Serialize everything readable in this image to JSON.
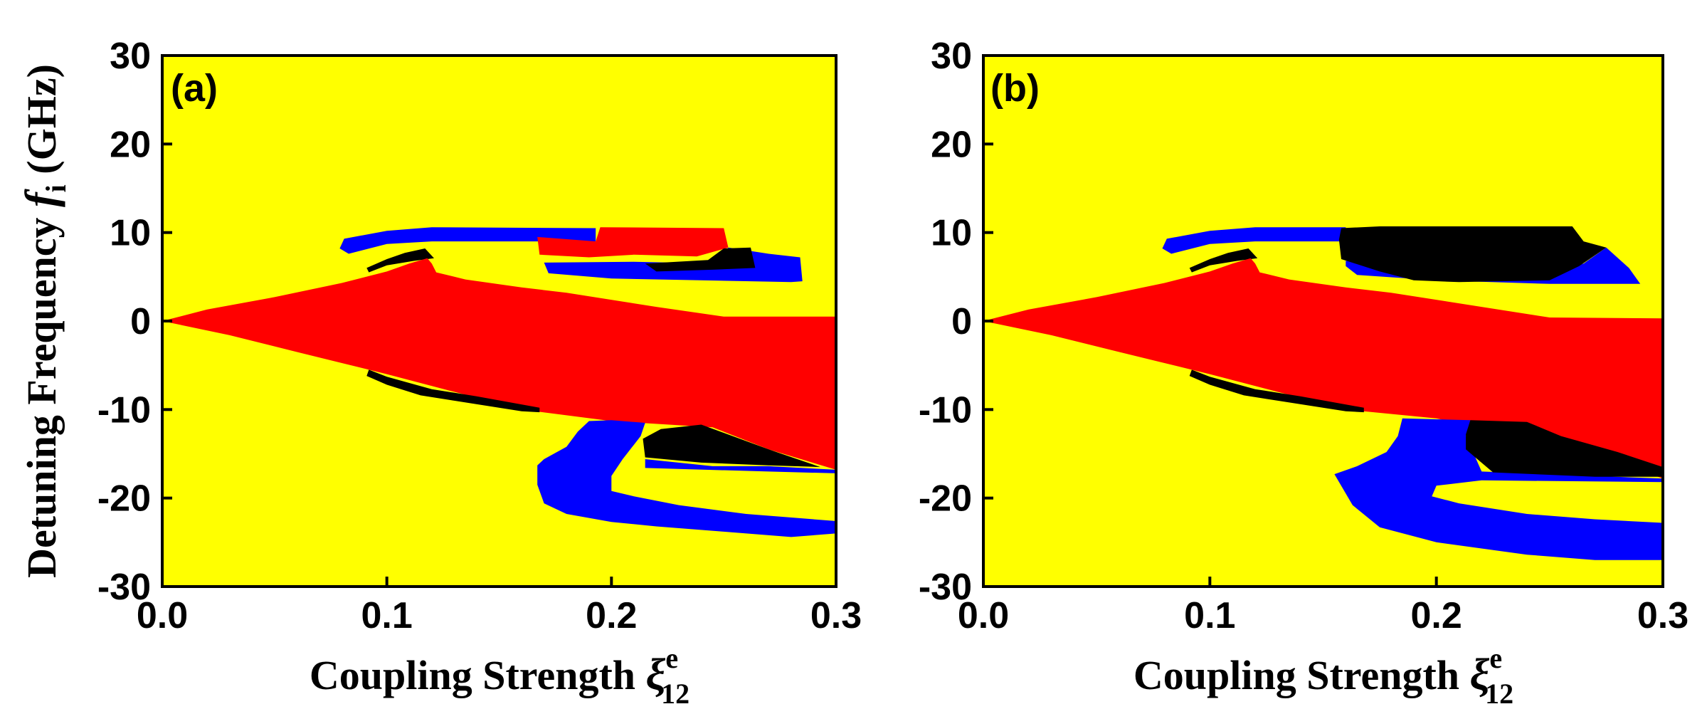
{
  "chart_data": [
    {
      "type": "heatmap",
      "panel_label": "(a)",
      "xlabel": "Coupling Strength",
      "xlabel_symbol": "ξ",
      "xlabel_superscript": "e",
      "xlabel_subscript": "12",
      "ylabel": "Detuning Frequency",
      "ylabel_symbol": "f",
      "ylabel_subscript": "i",
      "ylabel_unit": "(GHz)",
      "xlim": [
        0.0,
        0.3
      ],
      "ylim": [
        -30,
        30
      ],
      "xticks": [
        "0.0",
        "0.1",
        "0.2",
        "0.3"
      ],
      "yticks": [
        "-30",
        "-20",
        "-10",
        "0",
        "10",
        "20",
        "30"
      ],
      "background_color": "#ffff00",
      "regions": [
        {
          "name": "blue-upper-arc",
          "color": "#0000ff",
          "points": [
            [
              0.079,
              8.2
            ],
            [
              0.081,
              9.3
            ],
            [
              0.1,
              10.2
            ],
            [
              0.12,
              10.6
            ],
            [
              0.193,
              10.5
            ],
            [
              0.193,
              9.0
            ],
            [
              0.12,
              9.0
            ],
            [
              0.1,
              8.7
            ],
            [
              0.083,
              7.6
            ]
          ]
        },
        {
          "name": "blue-upper-right",
          "color": "#0000ff",
          "points": [
            [
              0.17,
              6.6
            ],
            [
              0.21,
              6.7
            ],
            [
              0.248,
              6.5
            ],
            [
              0.252,
              8.3
            ],
            [
              0.27,
              7.6
            ],
            [
              0.284,
              7.2
            ],
            [
              0.285,
              4.5
            ],
            [
              0.28,
              4.4
            ],
            [
              0.24,
              4.6
            ],
            [
              0.2,
              4.8
            ],
            [
              0.172,
              5.4
            ]
          ]
        },
        {
          "name": "red-upper-block",
          "color": "#ff0000",
          "points": [
            [
              0.167,
              9.5
            ],
            [
              0.193,
              9.0
            ],
            [
              0.195,
              10.6
            ],
            [
              0.25,
              10.5
            ],
            [
              0.252,
              8.3
            ],
            [
              0.238,
              7.3
            ],
            [
              0.21,
              7.5
            ],
            [
              0.19,
              7.2
            ],
            [
              0.168,
              7.5
            ]
          ]
        },
        {
          "name": "black-upper-sliver",
          "color": "#000000",
          "points": [
            [
              0.091,
              6.0
            ],
            [
              0.1,
              7.0
            ],
            [
              0.108,
              7.7
            ],
            [
              0.117,
              8.2
            ],
            [
              0.121,
              7.1
            ],
            [
              0.112,
              6.8
            ],
            [
              0.1,
              6.3
            ],
            [
              0.092,
              5.5
            ]
          ]
        },
        {
          "name": "black-upper-right",
          "color": "#000000",
          "points": [
            [
              0.215,
              6.5
            ],
            [
              0.243,
              6.9
            ],
            [
              0.25,
              8.2
            ],
            [
              0.262,
              8.3
            ],
            [
              0.264,
              6.0
            ],
            [
              0.245,
              5.8
            ],
            [
              0.22,
              5.6
            ]
          ]
        },
        {
          "name": "red-main-wedge",
          "color": "#ff0000",
          "points": [
            [
              0.0,
              0.0
            ],
            [
              0.02,
              1.3
            ],
            [
              0.05,
              2.7
            ],
            [
              0.08,
              4.3
            ],
            [
              0.1,
              5.6
            ],
            [
              0.11,
              6.5
            ],
            [
              0.118,
              7.1
            ],
            [
              0.12,
              6.5
            ],
            [
              0.122,
              5.5
            ],
            [
              0.135,
              4.7
            ],
            [
              0.16,
              3.8
            ],
            [
              0.18,
              3.2
            ],
            [
              0.22,
              1.6
            ],
            [
              0.25,
              0.5
            ],
            [
              0.3,
              0.5
            ],
            [
              0.3,
              -16.8
            ],
            [
              0.27,
              -14.5
            ],
            [
              0.245,
              -12.0
            ],
            [
              0.2,
              -11.3
            ],
            [
              0.16,
              -10.0
            ],
            [
              0.1,
              -6.0
            ],
            [
              0.06,
              -3.5
            ],
            [
              0.03,
              -1.6
            ],
            [
              0.0,
              0.0
            ]
          ]
        },
        {
          "name": "black-lower-sliver",
          "color": "#000000",
          "points": [
            [
              0.091,
              -6.2
            ],
            [
              0.1,
              -7.2
            ],
            [
              0.115,
              -8.4
            ],
            [
              0.13,
              -9.0
            ],
            [
              0.16,
              -10.2
            ],
            [
              0.168,
              -10.3
            ],
            [
              0.168,
              -9.8
            ],
            [
              0.14,
              -8.5
            ],
            [
              0.12,
              -7.7
            ],
            [
              0.1,
              -6.3
            ],
            [
              0.092,
              -5.5
            ]
          ]
        },
        {
          "name": "blue-lower-arc",
          "color": "#0000ff",
          "points": [
            [
              0.19,
              -11.3
            ],
            [
              0.2,
              -11.2
            ],
            [
              0.215,
              -11.5
            ],
            [
              0.213,
              -13.0
            ],
            [
              0.205,
              -15.6
            ],
            [
              0.2,
              -17.5
            ],
            [
              0.2,
              -18.6
            ],
            [
              0.2,
              -19.2
            ],
            [
              0.21,
              -19.8
            ],
            [
              0.23,
              -20.8
            ],
            [
              0.26,
              -21.8
            ],
            [
              0.3,
              -22.6
            ],
            [
              0.3,
              -24.0
            ],
            [
              0.28,
              -24.4
            ],
            [
              0.25,
              -23.8
            ],
            [
              0.22,
              -23.2
            ],
            [
              0.2,
              -22.7
            ],
            [
              0.18,
              -21.8
            ],
            [
              0.17,
              -20.6
            ],
            [
              0.167,
              -18.5
            ],
            [
              0.167,
              -16.3
            ],
            [
              0.17,
              -15.6
            ],
            [
              0.18,
              -14.2
            ],
            [
              0.185,
              -12.5
            ]
          ]
        },
        {
          "name": "blue-lower-right",
          "color": "#0000ff",
          "points": [
            [
              0.215,
              -15.6
            ],
            [
              0.245,
              -16.4
            ],
            [
              0.27,
              -16.4
            ],
            [
              0.3,
              -16.8
            ],
            [
              0.3,
              -17.2
            ],
            [
              0.27,
              -17.0
            ],
            [
              0.215,
              -16.6
            ]
          ]
        },
        {
          "name": "black-lower-right",
          "color": "#000000",
          "points": [
            [
              0.222,
              -12.2
            ],
            [
              0.24,
              -11.7
            ],
            [
              0.27,
              -14.5
            ],
            [
              0.293,
              -16.5
            ],
            [
              0.27,
              -16.3
            ],
            [
              0.24,
              -16.0
            ],
            [
              0.215,
              -15.4
            ],
            [
              0.214,
              -13.3
            ]
          ]
        }
      ]
    },
    {
      "type": "heatmap",
      "panel_label": "(b)",
      "xlabel": "Coupling Strength",
      "xlabel_symbol": "ξ",
      "xlabel_superscript": "e",
      "xlabel_subscript": "12",
      "xlim": [
        0.0,
        0.3
      ],
      "ylim": [
        -30,
        30
      ],
      "xticks": [
        "0.0",
        "0.1",
        "0.2",
        "0.3"
      ],
      "yticks": [
        "-30",
        "-20",
        "-10",
        "0",
        "10",
        "20",
        "30"
      ],
      "background_color": "#ffff00",
      "regions": [
        {
          "name": "blue-upper-arc",
          "color": "#0000ff",
          "points": [
            [
              0.079,
              8.2
            ],
            [
              0.081,
              9.3
            ],
            [
              0.1,
              10.2
            ],
            [
              0.12,
              10.6
            ],
            [
              0.16,
              10.6
            ],
            [
              0.16,
              9.0
            ],
            [
              0.12,
              9.0
            ],
            [
              0.1,
              8.7
            ],
            [
              0.083,
              7.6
            ]
          ]
        },
        {
          "name": "blue-upper-right",
          "color": "#0000ff",
          "points": [
            [
              0.16,
              6.8
            ],
            [
              0.2,
              6.0
            ],
            [
              0.25,
              5.5
            ],
            [
              0.265,
              6.5
            ],
            [
              0.275,
              8.3
            ],
            [
              0.285,
              6.0
            ],
            [
              0.29,
              4.2
            ],
            [
              0.25,
              4.2
            ],
            [
              0.2,
              4.6
            ],
            [
              0.165,
              5.2
            ],
            [
              0.16,
              6.2
            ]
          ]
        },
        {
          "name": "black-upper-block",
          "color": "#000000",
          "points": [
            [
              0.157,
              9.2
            ],
            [
              0.158,
              10.5
            ],
            [
              0.175,
              10.7
            ],
            [
              0.26,
              10.7
            ],
            [
              0.265,
              9.0
            ],
            [
              0.275,
              8.3
            ],
            [
              0.263,
              6.2
            ],
            [
              0.25,
              4.6
            ],
            [
              0.21,
              4.4
            ],
            [
              0.19,
              4.6
            ],
            [
              0.175,
              5.6
            ],
            [
              0.158,
              7.0
            ]
          ]
        },
        {
          "name": "black-upper-sliver",
          "color": "#000000",
          "points": [
            [
              0.091,
              6.0
            ],
            [
              0.1,
              7.0
            ],
            [
              0.108,
              7.7
            ],
            [
              0.117,
              8.2
            ],
            [
              0.121,
              7.1
            ],
            [
              0.112,
              6.8
            ],
            [
              0.1,
              6.3
            ],
            [
              0.092,
              5.5
            ]
          ]
        },
        {
          "name": "red-main-wedge",
          "color": "#ff0000",
          "points": [
            [
              0.0,
              0.0
            ],
            [
              0.02,
              1.3
            ],
            [
              0.05,
              2.7
            ],
            [
              0.08,
              4.3
            ],
            [
              0.1,
              5.6
            ],
            [
              0.11,
              6.5
            ],
            [
              0.118,
              7.1
            ],
            [
              0.12,
              6.5
            ],
            [
              0.122,
              5.5
            ],
            [
              0.135,
              4.7
            ],
            [
              0.16,
              3.8
            ],
            [
              0.18,
              3.2
            ],
            [
              0.22,
              1.6
            ],
            [
              0.25,
              0.4
            ],
            [
              0.3,
              0.3
            ],
            [
              0.3,
              -17.8
            ],
            [
              0.27,
              -15.0
            ],
            [
              0.24,
              -13.2
            ],
            [
              0.2,
              -11.0
            ],
            [
              0.16,
              -10.0
            ],
            [
              0.1,
              -6.0
            ],
            [
              0.06,
              -3.5
            ],
            [
              0.03,
              -1.6
            ],
            [
              0.0,
              0.0
            ]
          ]
        },
        {
          "name": "black-lower-sliver",
          "color": "#000000",
          "points": [
            [
              0.091,
              -6.2
            ],
            [
              0.1,
              -7.2
            ],
            [
              0.115,
              -8.4
            ],
            [
              0.13,
              -9.0
            ],
            [
              0.16,
              -10.2
            ],
            [
              0.168,
              -10.3
            ],
            [
              0.168,
              -9.8
            ],
            [
              0.14,
              -8.5
            ],
            [
              0.12,
              -7.7
            ],
            [
              0.1,
              -6.3
            ],
            [
              0.092,
              -5.5
            ]
          ]
        },
        {
          "name": "blue-lower-arc",
          "color": "#0000ff",
          "points": [
            [
              0.185,
              -11.0
            ],
            [
              0.215,
              -11.2
            ],
            [
              0.213,
              -13.0
            ],
            [
              0.22,
              -17.0
            ],
            [
              0.3,
              -17.8
            ],
            [
              0.3,
              -18.2
            ],
            [
              0.22,
              -18.0
            ],
            [
              0.2,
              -18.6
            ],
            [
              0.198,
              -19.8
            ],
            [
              0.21,
              -20.6
            ],
            [
              0.24,
              -21.8
            ],
            [
              0.27,
              -22.4
            ],
            [
              0.3,
              -22.8
            ],
            [
              0.3,
              -27.0
            ],
            [
              0.27,
              -27.0
            ],
            [
              0.24,
              -26.4
            ],
            [
              0.2,
              -25.0
            ],
            [
              0.175,
              -23.3
            ],
            [
              0.163,
              -20.8
            ],
            [
              0.155,
              -17.3
            ],
            [
              0.165,
              -16.4
            ],
            [
              0.178,
              -14.8
            ],
            [
              0.183,
              -13.0
            ]
          ]
        },
        {
          "name": "black-lower-right",
          "color": "#000000",
          "points": [
            [
              0.215,
              -11.2
            ],
            [
              0.24,
              -11.4
            ],
            [
              0.255,
              -13.0
            ],
            [
              0.28,
              -14.8
            ],
            [
              0.3,
              -16.5
            ],
            [
              0.3,
              -17.6
            ],
            [
              0.27,
              -17.6
            ],
            [
              0.225,
              -17.1
            ],
            [
              0.213,
              -14.5
            ],
            [
              0.213,
              -12.8
            ]
          ]
        }
      ]
    }
  ]
}
